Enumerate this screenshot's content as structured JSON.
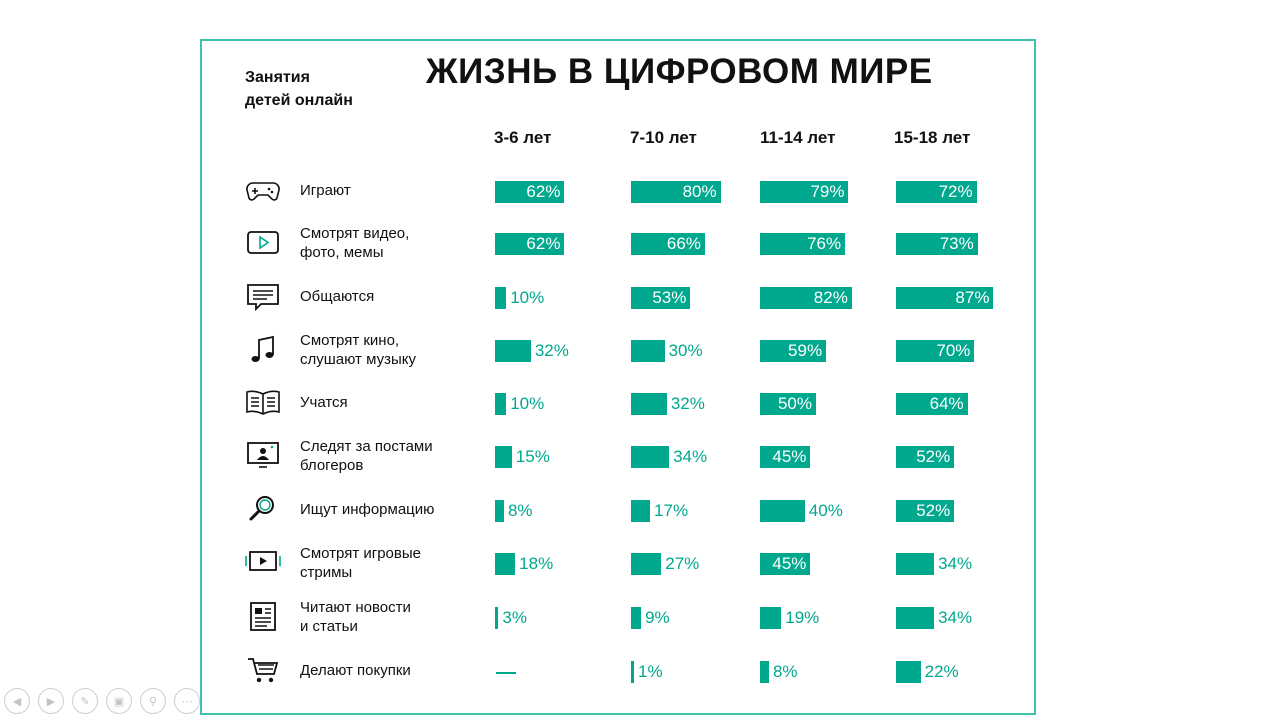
{
  "header": {
    "subtitle_line1": "Занятия",
    "subtitle_line2": "детей онлайн",
    "title": "ЖИЗНЬ В ЦИФРОВОМ МИРЕ"
  },
  "chart_data": {
    "type": "bar",
    "title": "ЖИЗНЬ В ЦИФРОВОМ МИРЕ",
    "subtitle": "Занятия детей онлайн",
    "unit": "%",
    "series": [
      {
        "name": "3-6 лет",
        "values": [
          62,
          62,
          10,
          32,
          10,
          15,
          8,
          18,
          3,
          0
        ]
      },
      {
        "name": "7-10 лет",
        "values": [
          80,
          66,
          53,
          30,
          32,
          34,
          17,
          27,
          9,
          1
        ]
      },
      {
        "name": "11-14 лет",
        "values": [
          79,
          76,
          82,
          59,
          50,
          45,
          40,
          45,
          19,
          8
        ]
      },
      {
        "name": "15-18 лет",
        "values": [
          72,
          73,
          87,
          70,
          64,
          52,
          52,
          34,
          34,
          22
        ]
      }
    ],
    "rows": [
      {
        "icon": "gamepad-icon",
        "line1": "Играют",
        "line2": "",
        "labels": [
          "62%",
          "80%",
          "79%",
          "72%"
        ]
      },
      {
        "icon": "video-play-icon",
        "line1": "Смотрят видео,",
        "line2": "фото, мемы",
        "labels": [
          "62%",
          "66%",
          "76%",
          "73%"
        ]
      },
      {
        "icon": "chat-icon",
        "line1": "Общаются",
        "line2": "",
        "labels": [
          "10%",
          "53%",
          "82%",
          "87%"
        ]
      },
      {
        "icon": "music-note-icon",
        "line1": "Смотрят кино,",
        "line2": "слушают музыку",
        "labels": [
          "32%",
          "30%",
          "59%",
          "70%"
        ]
      },
      {
        "icon": "book-icon",
        "line1": "Учатся",
        "line2": "",
        "labels": [
          "10%",
          "32%",
          "50%",
          "64%"
        ]
      },
      {
        "icon": "blogger-screen-icon",
        "line1": "Следят за постами",
        "line2": "блогеров",
        "labels": [
          "15%",
          "34%",
          "45%",
          "52%"
        ]
      },
      {
        "icon": "magnifier-icon",
        "line1": "Ищут информацию",
        "line2": "",
        "labels": [
          "8%",
          "17%",
          "40%",
          "52%"
        ]
      },
      {
        "icon": "stream-icon",
        "line1": "Смотрят игровые",
        "line2": "стримы",
        "labels": [
          "18%",
          "27%",
          "45%",
          "34%"
        ]
      },
      {
        "icon": "newspaper-icon",
        "line1": "Читают новости",
        "line2": "и статьи",
        "labels": [
          "3%",
          "9%",
          "19%",
          "34%"
        ]
      },
      {
        "icon": "cart-icon",
        "line1": "Делают покупки",
        "line2": "",
        "labels": [
          "—",
          "1%",
          "8%",
          "22%"
        ]
      }
    ]
  },
  "colors": {
    "bar": "#00a88e",
    "frame": "#3fc2ad",
    "text": "#111111"
  },
  "toolbar": {
    "icons": [
      "prev-icon",
      "next-icon",
      "pen-icon",
      "slides-icon",
      "zoom-icon",
      "more-icon"
    ]
  }
}
